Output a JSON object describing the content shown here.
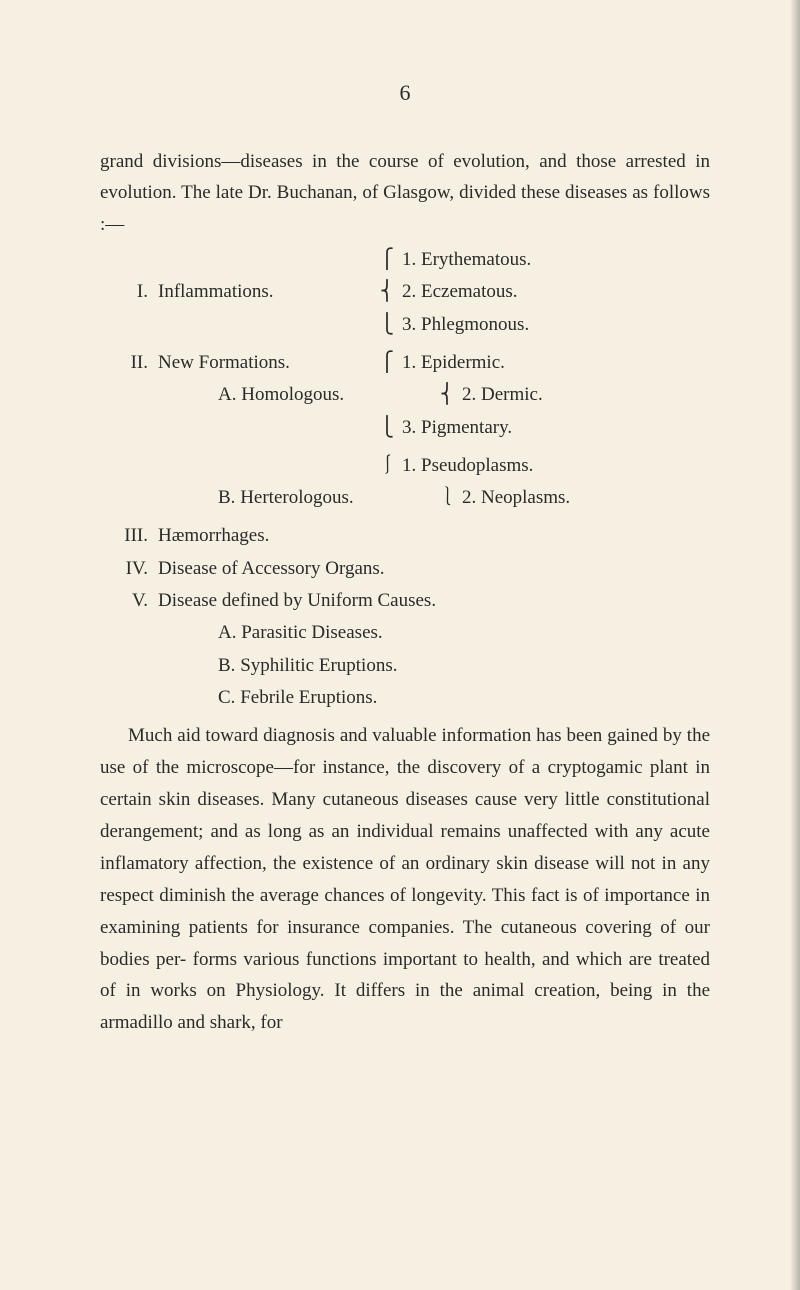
{
  "page_number": "6",
  "intro": "grand divisions—diseases in the course of evolution, and those arrested in evolution. The late Dr. Buchanan, of Glasgow, divided these diseases as follows :—",
  "outline": {
    "i": {
      "roman": "I.",
      "label": "Inflammations.",
      "subs": [
        {
          "num": "1.",
          "text": "Erythematous."
        },
        {
          "num": "2.",
          "text": "Eczematous."
        },
        {
          "num": "3.",
          "text": "Phlegmonous."
        }
      ]
    },
    "ii": {
      "roman": "II.",
      "label": "New Formations.",
      "a": {
        "letter": "A.",
        "label": "Homologous.",
        "subs": [
          {
            "num": "1.",
            "text": "Epidermic."
          },
          {
            "num": "2.",
            "text": "Dermic."
          },
          {
            "num": "3.",
            "text": "Pigmentary."
          }
        ]
      },
      "b": {
        "letter": "B.",
        "label": "Herterologous.",
        "subs": [
          {
            "num": "1.",
            "text": "Pseudoplasms."
          },
          {
            "num": "2.",
            "text": "Neoplasms."
          }
        ]
      }
    },
    "iii": {
      "roman": "III.",
      "label": "Hæmorrhages."
    },
    "iv": {
      "roman": "IV.",
      "label": "Disease of Accessory Organs."
    },
    "v": {
      "roman": "V.",
      "label": "Disease defined by Uniform Causes.",
      "a": {
        "letter": "A.",
        "label": "Parasitic Diseases."
      },
      "b": {
        "letter": "B.",
        "label": "Syphilitic Eruptions."
      },
      "c": {
        "letter": "C.",
        "label": "Febrile Eruptions."
      }
    }
  },
  "body": "Much aid toward diagnosis and valuable information has been gained by the use of the microscope—for instance, the discovery of a cryptogamic plant in certain skin diseases. Many cutaneous diseases cause very little constitutional derangement; and as long as an individual remains unaffected with any acute inflamatory affection, the existence of an ordinary skin disease will not in any respect diminish the average chances of longevity. This fact is of importance in examining patients for insurance companies. The cutaneous covering of our bodies per- forms various functions important to health, and which are treated of in works on Physiology. It differs in the animal creation, being in the armadillo and shark, for",
  "braces": {
    "top": "⎧",
    "mid": "⎨",
    "bot": "⎩",
    "single_top": "⎰",
    "single_bot": "⎱"
  }
}
